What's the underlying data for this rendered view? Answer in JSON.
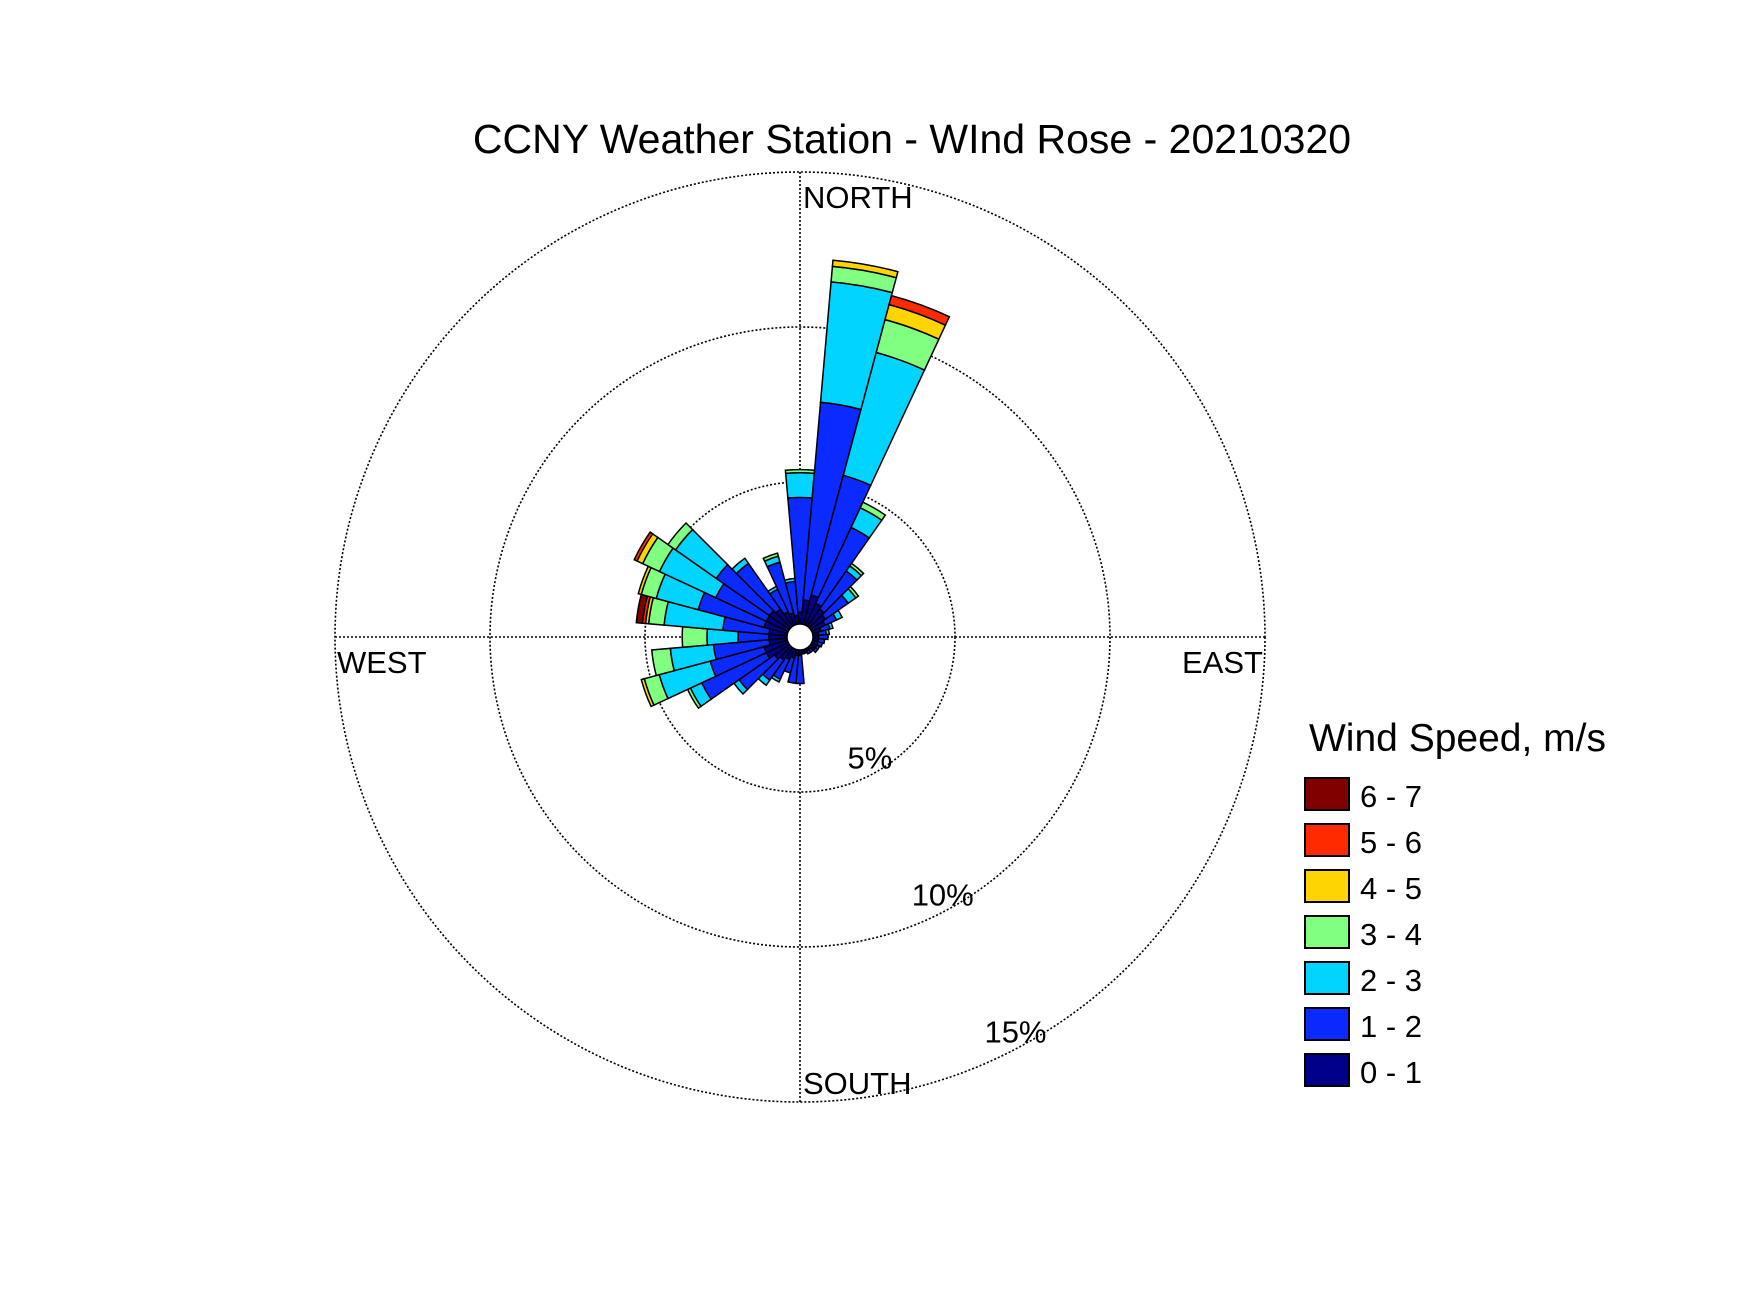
{
  "chart_data": {
    "type": "wind-rose",
    "title": "CCNY Weather Station - WInd Rose - 20210320",
    "direction_labels": [
      "NORTH",
      "EAST",
      "SOUTH",
      "WEST"
    ],
    "radial_max": 15,
    "radial_ticks": [
      5,
      10,
      15
    ],
    "radial_tick_labels": [
      "5%",
      "10%",
      "15%"
    ],
    "grid": true,
    "legend": {
      "title": "Wind Speed, m/s",
      "placement": "right",
      "bins": [
        {
          "label": "6 - 7",
          "color": "#800000"
        },
        {
          "label": "5 - 6",
          "color": "#ff2a00"
        },
        {
          "label": "4 - 5",
          "color": "#ffd400"
        },
        {
          "label": "3 - 4",
          "color": "#80ff80"
        },
        {
          "label": "2 - 3",
          "color": "#00d4ff"
        },
        {
          "label": "1 - 2",
          "color": "#0a2aff"
        },
        {
          "label": "0 - 1",
          "color": "#00008a"
        }
      ]
    },
    "bin_order_inner_to_outer": [
      "0 - 1",
      "1 - 2",
      "2 - 3",
      "3 - 4",
      "4 - 5",
      "5 - 6",
      "6 - 7"
    ],
    "sector_width_deg": 10,
    "sectors": [
      {
        "dir": 0,
        "cum": [
          0.8,
          4.5,
          5.3,
          5.4
        ]
      },
      {
        "dir": 10,
        "cum": [
          1.2,
          7.6,
          11.5,
          12.0,
          12.2
        ]
      },
      {
        "dir": 20,
        "cum": [
          1.4,
          5.4,
          9.5,
          10.6,
          11.1,
          11.4
        ]
      },
      {
        "dir": 30,
        "cum": [
          1.2,
          3.9,
          4.6,
          4.8
        ]
      },
      {
        "dir": 40,
        "cum": [
          1.1,
          2.6,
          2.8,
          2.9
        ]
      },
      {
        "dir": 50,
        "cum": [
          1.0,
          1.9,
          2.2,
          2.3
        ]
      },
      {
        "dir": 60,
        "cum": [
          0.9,
          1.3,
          1.5
        ]
      },
      {
        "dir": 70,
        "cum": [
          0.7,
          1.0,
          1.1
        ]
      },
      {
        "dir": 80,
        "cum": [
          0.6,
          0.85,
          0.95
        ]
      },
      {
        "dir": 90,
        "cum": [
          0.6,
          0.9
        ]
      },
      {
        "dir": 100,
        "cum": [
          0.6,
          0.8
        ]
      },
      {
        "dir": 110,
        "cum": [
          0.6,
          0.75
        ]
      },
      {
        "dir": 120,
        "cum": [
          0.6,
          0.7
        ]
      },
      {
        "dir": 130,
        "cum": [
          0.6,
          0.7
        ]
      },
      {
        "dir": 140,
        "cum": [
          0.5,
          0.6
        ]
      },
      {
        "dir": 150,
        "cum": [
          0.5,
          0.6
        ]
      },
      {
        "dir": 160,
        "cum": [
          0.5,
          0.55
        ]
      },
      {
        "dir": 170,
        "cum": [
          0.5,
          0.55
        ]
      },
      {
        "dir": 180,
        "cum": [
          0.6,
          1.5
        ]
      },
      {
        "dir": 190,
        "cum": [
          0.6,
          1.5
        ]
      },
      {
        "dir": 200,
        "cum": [
          0.7,
          1.2
        ]
      },
      {
        "dir": 210,
        "cum": [
          0.8,
          1.5,
          1.6
        ]
      },
      {
        "dir": 220,
        "cum": [
          0.9,
          1.7,
          1.9
        ]
      },
      {
        "dir": 230,
        "cum": [
          1.0,
          2.4,
          2.6
        ]
      },
      {
        "dir": 240,
        "cum": [
          1.2,
          3.5,
          3.9,
          4.0
        ]
      },
      {
        "dir": 250,
        "cum": [
          1.2,
          3.0,
          4.7,
          5.2,
          5.3
        ]
      },
      {
        "dir": 260,
        "cum": [
          1.0,
          2.8,
          4.2,
          4.8
        ]
      },
      {
        "dir": 270,
        "cum": [
          1.0,
          2.0,
          3.0,
          3.8
        ]
      },
      {
        "dir": 280,
        "cum": [
          1.0,
          2.5,
          4.4,
          4.9,
          5.0,
          5.1,
          5.3
        ]
      },
      {
        "dir": 290,
        "cum": [
          1.2,
          3.4,
          4.8,
          5.3,
          5.4
        ]
      },
      {
        "dir": 300,
        "cum": [
          1.2,
          3.0,
          5.0,
          5.6,
          5.8,
          5.9
        ]
      },
      {
        "dir": 310,
        "cum": [
          1.2,
          3.3,
          4.9,
          5.2
        ]
      },
      {
        "dir": 320,
        "cum": [
          1.1,
          2.9,
          3.1
        ]
      },
      {
        "dir": 330,
        "cum": [
          0.9,
          1.7,
          1.8
        ]
      },
      {
        "dir": 340,
        "cum": [
          0.8,
          2.5,
          2.7,
          2.8
        ]
      },
      {
        "dir": 350,
        "cum": [
          0.7,
          1.8,
          1.9
        ]
      }
    ]
  }
}
